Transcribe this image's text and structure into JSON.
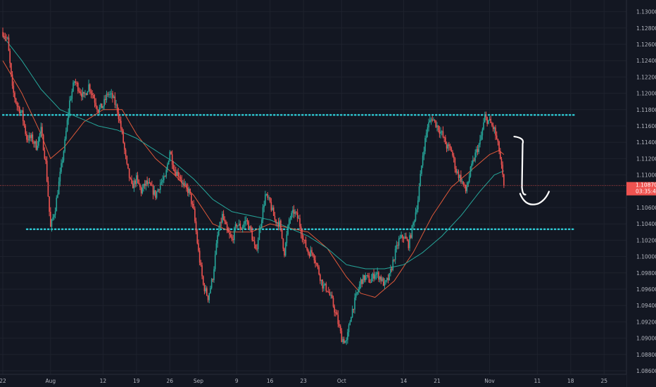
{
  "chart_data": {
    "type": "candlestick",
    "colors": {
      "background": "#131722",
      "grid": "#1e222d",
      "up": "#26a69a",
      "down": "#ef5350",
      "ma_fast": "#e0593a",
      "ma_slow": "#26a69a",
      "level": "#31d6e0",
      "price_tag": "#ef5350",
      "axis_text": "#b2b5be",
      "annotation": "#ffffff"
    },
    "y_axis": {
      "min": 1.086,
      "max": 1.131,
      "ticks": [
        "1.13000",
        "1.12800",
        "1.12600",
        "1.12400",
        "1.12200",
        "1.12000",
        "1.11800",
        "1.11600",
        "1.11400",
        "1.11200",
        "1.11000",
        "1.10800",
        "1.10600",
        "1.10400",
        "1.10200",
        "1.10000",
        "1.09800",
        "1.09600",
        "1.09400",
        "1.09200",
        "1.09000",
        "1.08800",
        "1.08600"
      ]
    },
    "x_axis": {
      "labels": [
        {
          "text": "22",
          "day": 0
        },
        {
          "text": "Aug",
          "day": 10
        },
        {
          "text": "12",
          "day": 21
        },
        {
          "text": "19",
          "day": 28
        },
        {
          "text": "26",
          "day": 35
        },
        {
          "text": "Sep",
          "day": 41
        },
        {
          "text": "9",
          "day": 49
        },
        {
          "text": "16",
          "day": 56
        },
        {
          "text": "23",
          "day": 63
        },
        {
          "text": "Oct",
          "day": 71
        },
        {
          "text": "14",
          "day": 84
        },
        {
          "text": "21",
          "day": 91
        },
        {
          "text": "Nov",
          "day": 102
        },
        {
          "text": "11",
          "day": 112
        },
        {
          "text": "18",
          "day": 119
        },
        {
          "text": "25",
          "day": 126
        }
      ]
    },
    "price_anchors": [
      [
        0,
        1.1275
      ],
      [
        1,
        1.1265
      ],
      [
        2,
        1.1205
      ],
      [
        3,
        1.1185
      ],
      [
        4,
        1.1175
      ],
      [
        5,
        1.1145
      ],
      [
        6,
        1.1145
      ],
      [
        7,
        1.1135
      ],
      [
        8,
        1.1155
      ],
      [
        9,
        1.1115
      ],
      [
        10,
        1.1035
      ],
      [
        11,
        1.106
      ],
      [
        12,
        1.11
      ],
      [
        13,
        1.114
      ],
      [
        14,
        1.119
      ],
      [
        15,
        1.1215
      ],
      [
        16,
        1.1205
      ],
      [
        17,
        1.1195
      ],
      [
        18,
        1.121
      ],
      [
        19,
        1.1195
      ],
      [
        20,
        1.118
      ],
      [
        21,
        1.1185
      ],
      [
        22,
        1.12
      ],
      [
        23,
        1.1195
      ],
      [
        24,
        1.118
      ],
      [
        25,
        1.115
      ],
      [
        26,
        1.111
      ],
      [
        27,
        1.1085
      ],
      [
        28,
        1.1095
      ],
      [
        29,
        1.108
      ],
      [
        30,
        1.109
      ],
      [
        31,
        1.1085
      ],
      [
        32,
        1.1075
      ],
      [
        33,
        1.109
      ],
      [
        34,
        1.1095
      ],
      [
        35,
        1.113
      ],
      [
        36,
        1.1105
      ],
      [
        37,
        1.11
      ],
      [
        38,
        1.1085
      ],
      [
        39,
        1.108
      ],
      [
        40,
        1.1055
      ],
      [
        41,
        1.1005
      ],
      [
        42,
        1.0965
      ],
      [
        43,
        1.095
      ],
      [
        44,
        1.0975
      ],
      [
        45,
        1.1025
      ],
      [
        46,
        1.105
      ],
      [
        47,
        1.103
      ],
      [
        48,
        1.102
      ],
      [
        49,
        1.104
      ],
      [
        50,
        1.1035
      ],
      [
        51,
        1.1045
      ],
      [
        52,
        1.103
      ],
      [
        53,
        1.1005
      ],
      [
        54,
        1.104
      ],
      [
        55,
        1.1075
      ],
      [
        56,
        1.1065
      ],
      [
        57,
        1.1045
      ],
      [
        58,
        1.104
      ],
      [
        59,
        1.1005
      ],
      [
        60,
        1.1045
      ],
      [
        61,
        1.1055
      ],
      [
        62,
        1.1045
      ],
      [
        63,
        1.102
      ],
      [
        64,
        1.1005
      ],
      [
        65,
        1.1005
      ],
      [
        66,
        1.0985
      ],
      [
        67,
        1.0965
      ],
      [
        68,
        1.096
      ],
      [
        69,
        1.0945
      ],
      [
        70,
        1.0925
      ],
      [
        71,
        1.09
      ],
      [
        72,
        1.0895
      ],
      [
        73,
        1.093
      ],
      [
        74,
        1.095
      ],
      [
        75,
        1.097
      ],
      [
        76,
        1.0975
      ],
      [
        77,
        1.097
      ],
      [
        78,
        1.098
      ],
      [
        79,
        1.0975
      ],
      [
        80,
        1.0965
      ],
      [
        81,
        1.0975
      ],
      [
        82,
        1.1
      ],
      [
        83,
        1.102
      ],
      [
        84,
        1.1025
      ],
      [
        85,
        1.1015
      ],
      [
        86,
        1.104
      ],
      [
        87,
        1.107
      ],
      [
        88,
        1.1125
      ],
      [
        89,
        1.116
      ],
      [
        90,
        1.117
      ],
      [
        91,
        1.116
      ],
      [
        92,
        1.115
      ],
      [
        93,
        1.1135
      ],
      [
        94,
        1.113
      ],
      [
        95,
        1.1105
      ],
      [
        96,
        1.1095
      ],
      [
        97,
        1.108
      ],
      [
        98,
        1.1105
      ],
      [
        99,
        1.1125
      ],
      [
        100,
        1.114
      ],
      [
        101,
        1.117
      ],
      [
        102,
        1.1165
      ],
      [
        103,
        1.1155
      ],
      [
        104,
        1.113
      ],
      [
        105,
        1.1087
      ]
    ],
    "moving_averages": [
      {
        "color": "#e0593a",
        "points": [
          [
            0,
            1.124
          ],
          [
            4,
            1.12
          ],
          [
            8,
            1.115
          ],
          [
            10,
            1.112
          ],
          [
            13,
            1.1135
          ],
          [
            17,
            1.1165
          ],
          [
            21,
            1.118
          ],
          [
            25,
            1.118
          ],
          [
            28,
            1.115
          ],
          [
            32,
            1.112
          ],
          [
            36,
            1.11
          ],
          [
            40,
            1.1075
          ],
          [
            44,
            1.104
          ],
          [
            48,
            1.103
          ],
          [
            52,
            1.103
          ],
          [
            56,
            1.104
          ],
          [
            60,
            1.1035
          ],
          [
            64,
            1.103
          ],
          [
            68,
            1.101
          ],
          [
            72,
            1.0975
          ],
          [
            75,
            1.0955
          ],
          [
            78,
            1.095
          ],
          [
            82,
            1.097
          ],
          [
            86,
            1.1005
          ],
          [
            90,
            1.105
          ],
          [
            94,
            1.1085
          ],
          [
            98,
            1.1105
          ],
          [
            102,
            1.1125
          ],
          [
            104,
            1.113
          ],
          [
            105,
            1.1125
          ]
        ]
      },
      {
        "color": "#26a69a",
        "points": [
          [
            0,
            1.127
          ],
          [
            4,
            1.124
          ],
          [
            8,
            1.1205
          ],
          [
            12,
            1.118
          ],
          [
            16,
            1.117
          ],
          [
            20,
            1.116
          ],
          [
            24,
            1.1155
          ],
          [
            28,
            1.1145
          ],
          [
            32,
            1.113
          ],
          [
            36,
            1.1115
          ],
          [
            40,
            1.1095
          ],
          [
            44,
            1.107
          ],
          [
            48,
            1.1055
          ],
          [
            52,
            1.105
          ],
          [
            56,
            1.1045
          ],
          [
            60,
            1.1035
          ],
          [
            64,
            1.1025
          ],
          [
            68,
            1.101
          ],
          [
            72,
            1.099
          ],
          [
            76,
            1.0985
          ],
          [
            80,
            1.0985
          ],
          [
            84,
            1.099
          ],
          [
            88,
            1.1005
          ],
          [
            92,
            1.1025
          ],
          [
            96,
            1.105
          ],
          [
            100,
            1.108
          ],
          [
            103,
            1.11
          ],
          [
            105,
            1.1105
          ]
        ]
      }
    ],
    "horizontal_levels": [
      {
        "price": 1.11735,
        "from_day": 0,
        "to_day": 120
      },
      {
        "price": 1.10335,
        "from_day": 5,
        "to_day": 120
      }
    ],
    "current_price": {
      "value": "1.10870",
      "price": 1.1087,
      "countdown": "03:35:41"
    },
    "annotation": {
      "type": "handwritten-bracket"
    }
  }
}
